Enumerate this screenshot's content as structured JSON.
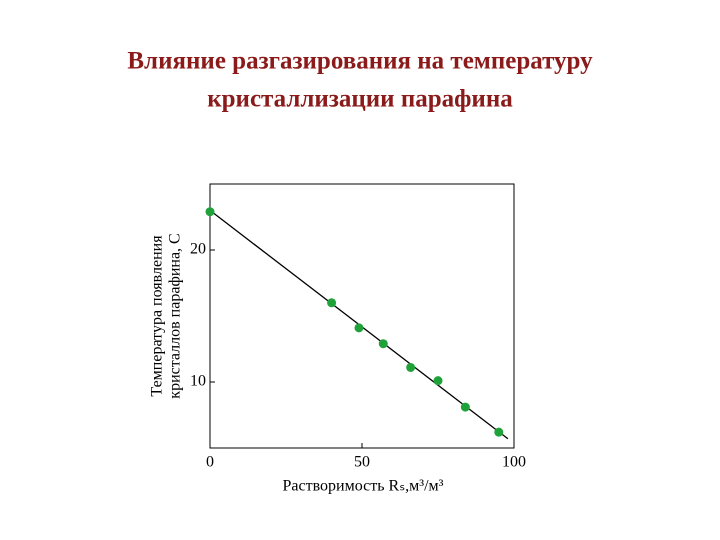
{
  "chart_data": {
    "type": "scatter",
    "title": [
      "Влияние разгазирования на температуру",
      "кристаллизации парафина"
    ],
    "x_label": "Растворимость Rₛ,м³/м³",
    "y_label": [
      "Температура появления",
      "кристаллов парафина, С"
    ],
    "x": [
      0,
      40,
      49,
      57,
      66,
      75,
      84,
      95
    ],
    "values": [
      22.9,
      16.0,
      14.1,
      12.9,
      11.1,
      10.1,
      8.1,
      6.2
    ],
    "color": "#1fa23a",
    "fit_line": {
      "x": [
        0,
        98
      ],
      "y": [
        23,
        5.7
      ],
      "color": "#000000"
    },
    "xlim": [
      0,
      100
    ],
    "xticks": [
      0,
      50,
      100
    ],
    "ylim": [
      5,
      25
    ],
    "yticks": [
      10,
      20
    ],
    "grid": false
  }
}
